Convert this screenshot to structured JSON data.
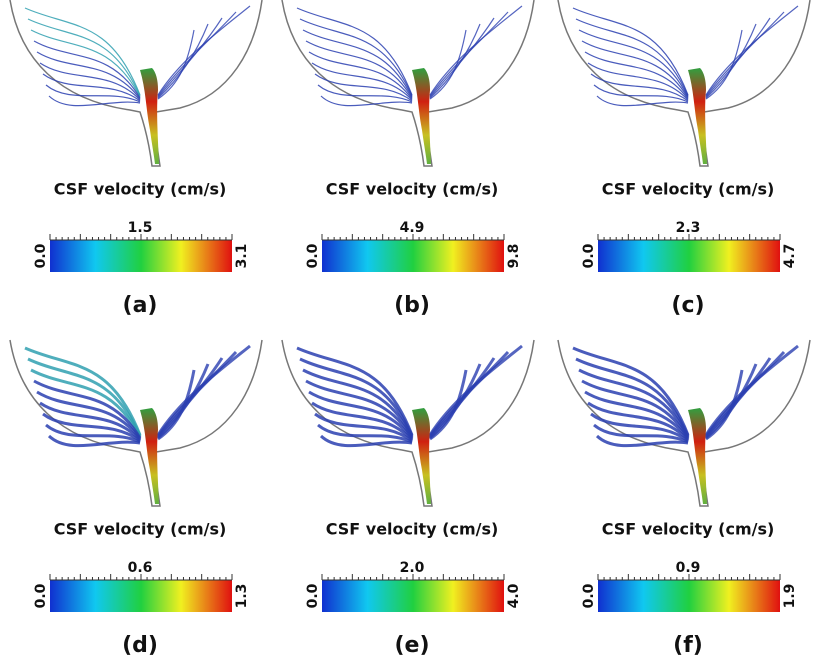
{
  "panels": [
    {
      "title": "CSF velocity (cm/s)",
      "min": "0.0",
      "mid": "1.5",
      "max": "3.1",
      "label": "(a)"
    },
    {
      "title": "CSF velocity (cm/s)",
      "min": "0.0",
      "mid": "4.9",
      "max": "9.8",
      "label": "(b)"
    },
    {
      "title": "CSF velocity (cm/s)",
      "min": "0.0",
      "mid": "2.3",
      "max": "4.7",
      "label": "(c)"
    },
    {
      "title": "CSF velocity (cm/s)",
      "min": "0.0",
      "mid": "0.6",
      "max": "1.3",
      "label": "(d)"
    },
    {
      "title": "CSF velocity (cm/s)",
      "min": "0.0",
      "mid": "2.0",
      "max": "4.0",
      "label": "(e)"
    },
    {
      "title": "CSF velocity (cm/s)",
      "min": "0.0",
      "mid": "0.9",
      "max": "1.9",
      "label": "(f)"
    }
  ]
}
